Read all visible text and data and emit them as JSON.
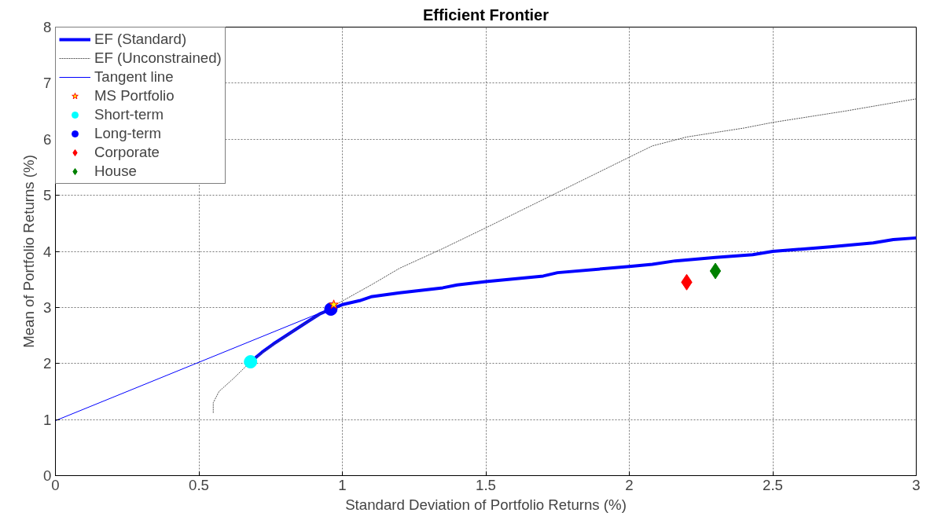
{
  "chart_data": {
    "type": "line",
    "title": "Efficient Frontier",
    "xlabel": "Standard Deviation of Portfolio Returns (%)",
    "ylabel": "Mean of Portfolio Returns (%)",
    "xlim": [
      0,
      3
    ],
    "ylim": [
      0,
      8
    ],
    "xticks": [
      0,
      0.5,
      1,
      1.5,
      2,
      2.5,
      3
    ],
    "yticks": [
      0,
      1,
      2,
      3,
      4,
      5,
      6,
      7,
      8
    ],
    "grid": true,
    "legend": "top left",
    "series": [
      {
        "name": "EF (Standard)",
        "color": "#0000ff",
        "x": [
          0.68,
          0.72,
          0.76,
          0.82,
          0.88,
          0.92,
          0.96,
          1.0,
          1.06,
          1.1,
          1.2,
          1.35,
          1.4,
          1.5,
          1.7,
          1.75,
          2.0,
          2.08,
          2.16,
          2.3,
          2.43,
          2.5,
          2.7,
          2.85,
          2.92,
          3.0
        ],
        "values": [
          2.03,
          2.2,
          2.35,
          2.55,
          2.75,
          2.88,
          2.97,
          3.05,
          3.12,
          3.19,
          3.26,
          3.35,
          3.4,
          3.46,
          3.56,
          3.62,
          3.73,
          3.77,
          3.83,
          3.89,
          3.94,
          4.0,
          4.08,
          4.15,
          4.21,
          4.24
        ]
      },
      {
        "name": "EF (Unconstrained)",
        "color": "#555555",
        "line_style": "dotted",
        "x": [
          0.55,
          0.55,
          0.57,
          0.62,
          0.68,
          0.75,
          0.85,
          0.96,
          1.1,
          1.2,
          1.35,
          1.5,
          1.75,
          2.0,
          2.08,
          2.2,
          2.4,
          2.5,
          2.75,
          3.0
        ],
        "values": [
          1.12,
          1.3,
          1.5,
          1.73,
          2.03,
          2.3,
          2.65,
          3.0,
          3.4,
          3.7,
          4.05,
          4.42,
          5.05,
          5.68,
          5.88,
          6.04,
          6.2,
          6.3,
          6.5,
          6.72
        ]
      },
      {
        "name": "Tangent line",
        "color": "#0000ff",
        "x": [
          0,
          0.96
        ],
        "values": [
          0.98,
          2.98
        ]
      },
      {
        "name": "MS Portfolio",
        "type": "scatter",
        "marker": "star",
        "color": "#ff0000",
        "x": [
          0.97
        ],
        "values": [
          3.05
        ]
      },
      {
        "name": "Short-term",
        "type": "scatter",
        "marker": "circle",
        "color": "#00ffff",
        "x": [
          0.68
        ],
        "values": [
          2.03
        ]
      },
      {
        "name": "Long-term",
        "type": "scatter",
        "marker": "circle",
        "color": "#0000ff",
        "x": [
          0.96
        ],
        "values": [
          2.97
        ]
      },
      {
        "name": "Corporate",
        "type": "scatter",
        "marker": "diamond",
        "color": "#ff0000",
        "x": [
          2.2
        ],
        "values": [
          3.45
        ]
      },
      {
        "name": "House",
        "type": "scatter",
        "marker": "diamond",
        "color": "#008000",
        "x": [
          2.3
        ],
        "values": [
          3.65
        ]
      }
    ]
  }
}
